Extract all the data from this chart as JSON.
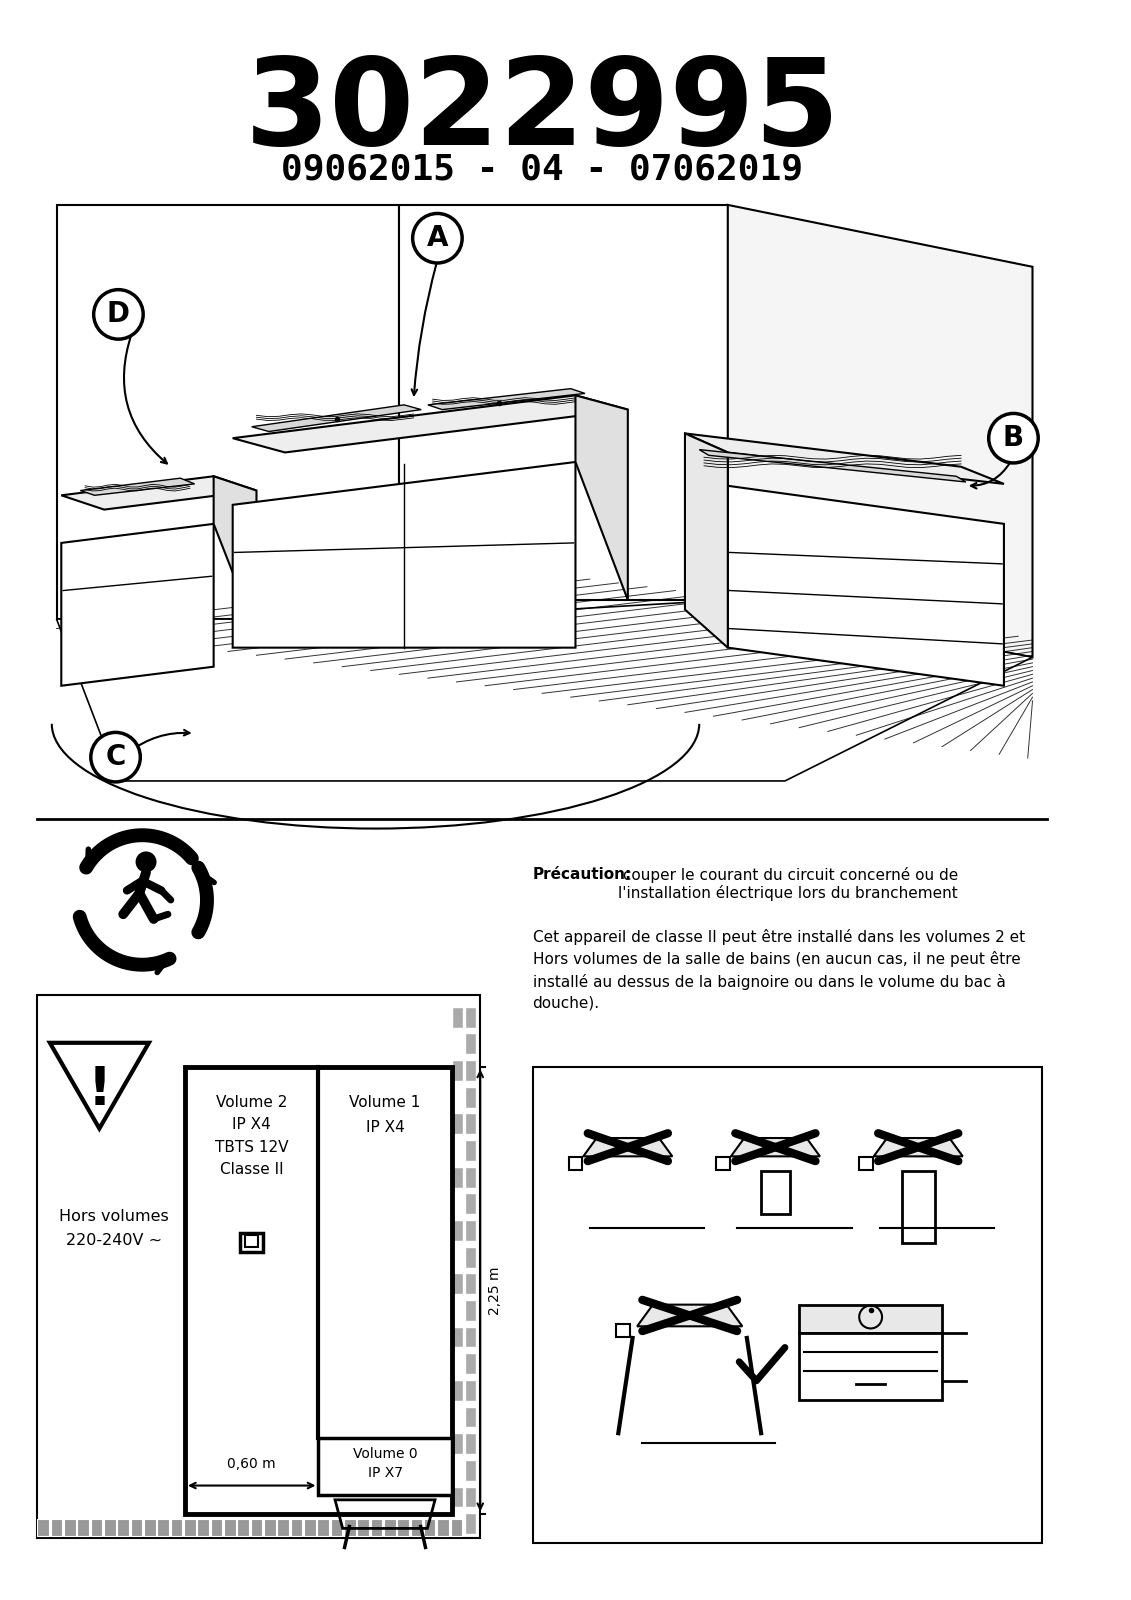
{
  "title_large": "3022995",
  "title_sub": "09062015 - 04 - 07062019",
  "label_A": "A",
  "label_B": "B",
  "label_C": "C",
  "label_D": "D",
  "precaution_bold": "Précaution:",
  "precaution_text": "  couper le courant du circuit concerné ou de\nl'installation électrique lors du branchement",
  "body_text": "Cet appareil de classe II peut être installé dans les volumes 2 et\nHors volumes de la salle de bains (en aucun cas, il ne peut être\ninstallé au dessus de la baignoire ou dans le volume du bac à\ndouche).",
  "vol_hors": "Hors volumes\n220-240V ~",
  "vol2": "Volume 2\nIP X4\nTBTS 12V\nClasse II",
  "vol1": "Volume 1\nIP X4",
  "vol0": "Volume 0\nIP X7",
  "dim_060": "0,60 m",
  "dim_225": "2,25 m",
  "bg_color": "#ffffff",
  "text_color": "#000000"
}
